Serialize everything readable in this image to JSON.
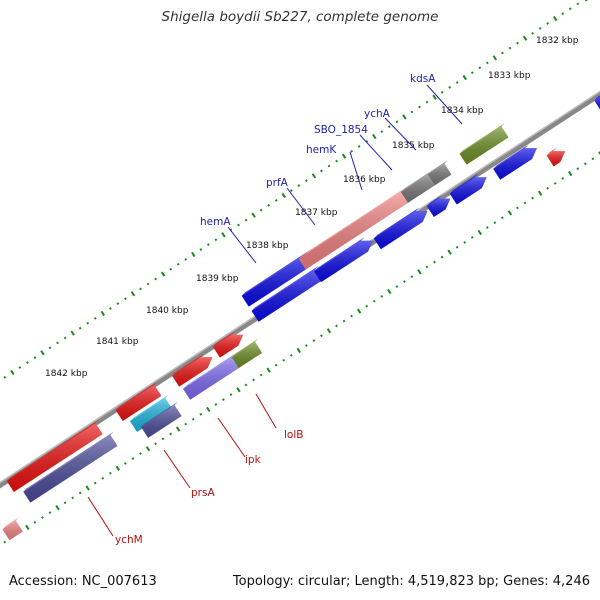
{
  "title": "Shigella boydii Sb227, complete genome",
  "footer": {
    "accession": "Accession: NC_007613",
    "summary": "Topology: circular; Length: 4,519,823 bp; Genes: 4,246"
  },
  "kbp_labels": [
    "1832 kbp",
    "1833 kbp",
    "1834 kbp",
    "1835 kbp",
    "1836 kbp",
    "1837 kbp",
    "1838 kbp",
    "1839 kbp",
    "1840 kbp",
    "1841 kbp",
    "1842 kbp"
  ],
  "genes_top": [
    "kdsA",
    "ychA",
    "SBO_1854",
    "hemK",
    "prfA",
    "hemA"
  ],
  "genes_bottom": [
    "lolB",
    "ipk",
    "prsA",
    "ychM"
  ],
  "colors": {
    "cds_blue": "#0a0ae6",
    "cds_red": "#ee1111",
    "pink": "#f08080",
    "gray": "#777777",
    "olive": "#6b8e23",
    "slate": "#4b4b9a",
    "purple": "#7b68ee",
    "cyan": "#1fb6e0",
    "backbone": "#888888",
    "ticks": "#1a8a1a"
  }
}
